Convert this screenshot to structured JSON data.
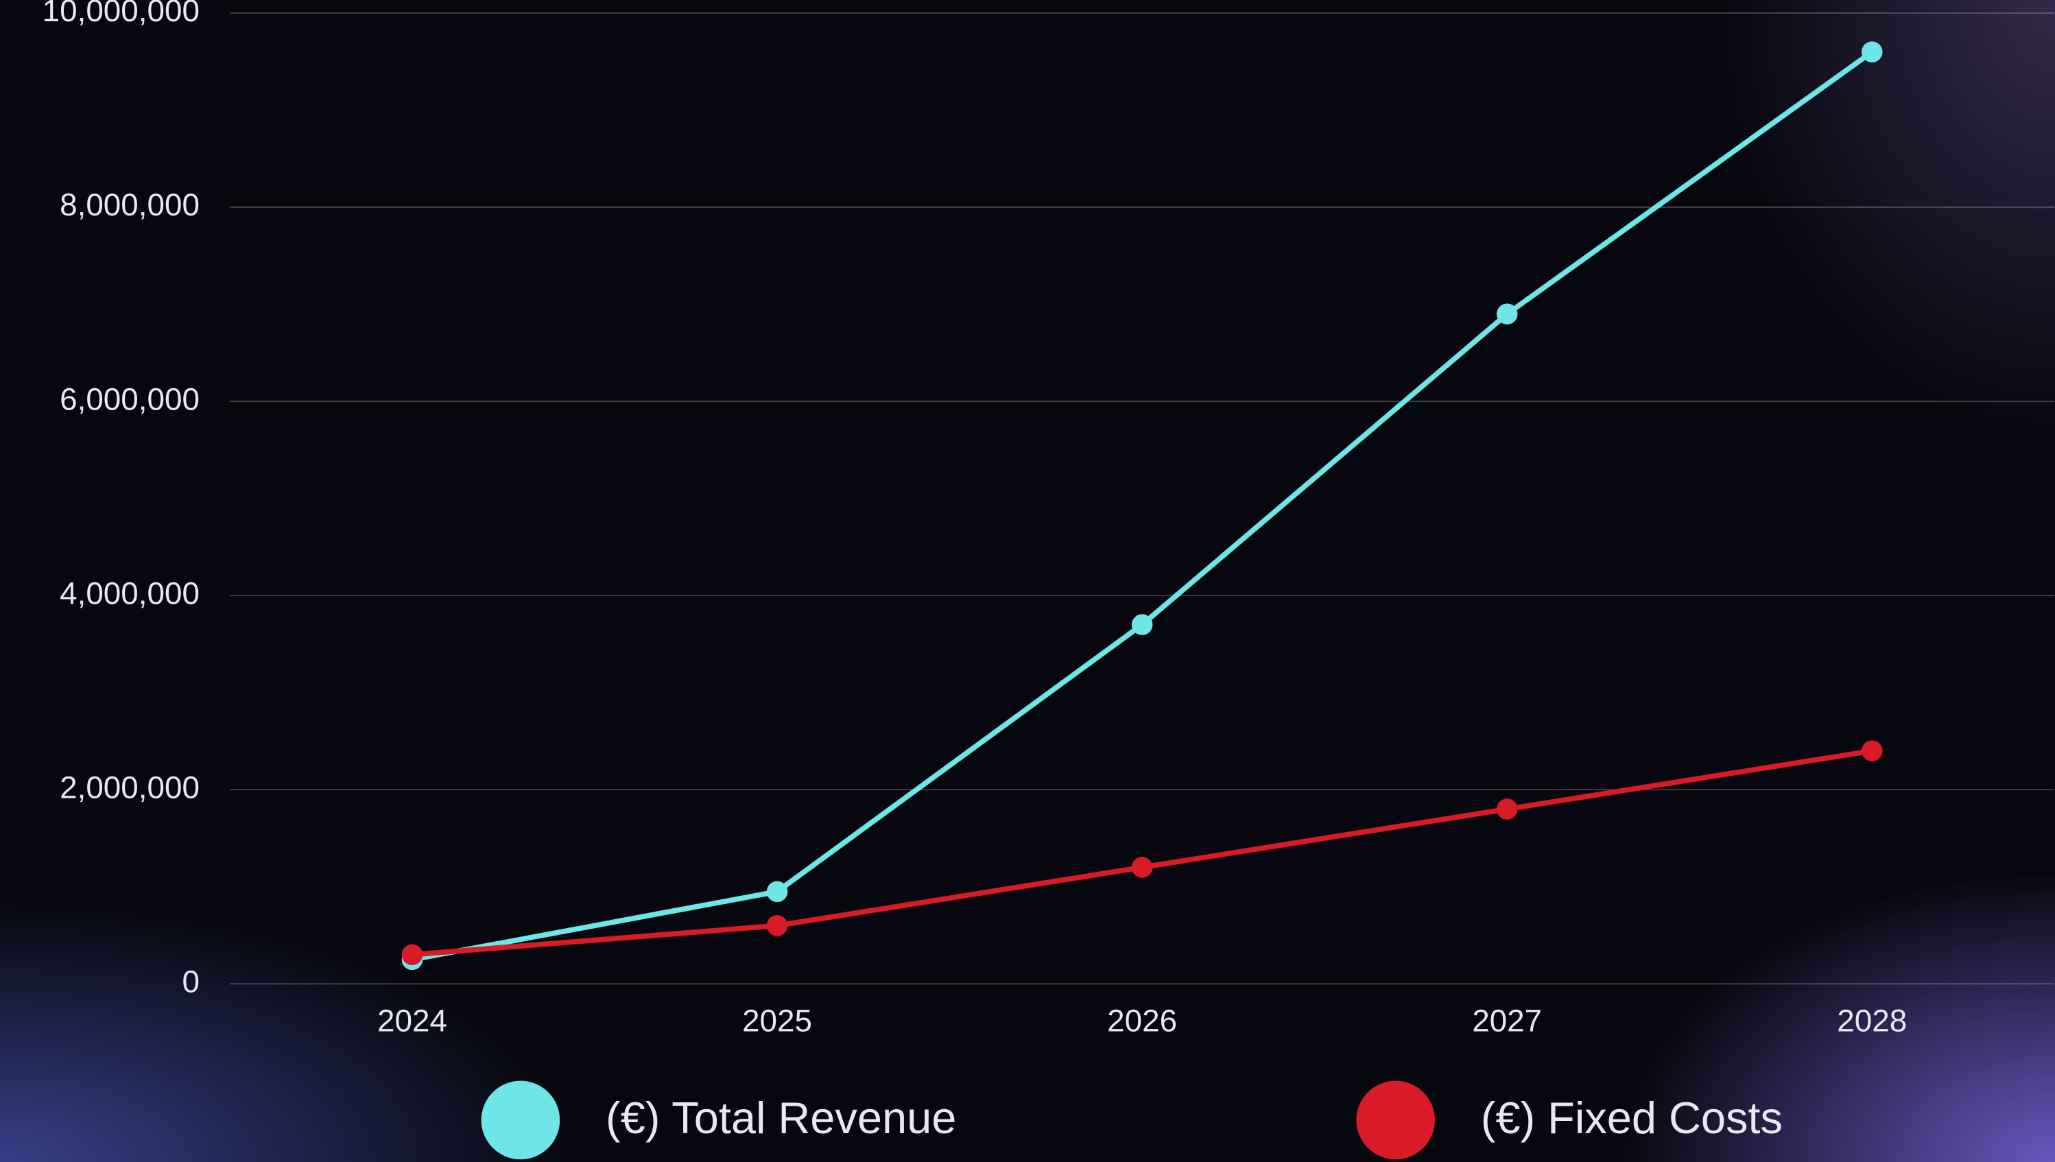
{
  "chart_data": {
    "type": "line",
    "categories": [
      "2024",
      "2025",
      "2026",
      "2027",
      "2028"
    ],
    "series": [
      {
        "name": "(€) Total Revenue",
        "color": "#6ee6e8",
        "values": [
          250000,
          950000,
          3700000,
          6900000,
          9600000
        ]
      },
      {
        "name": "(€) Fixed Costs",
        "color": "#d81b26",
        "values": [
          300000,
          600000,
          1200000,
          1800000,
          2400000
        ]
      }
    ],
    "ylim": [
      0,
      10000000
    ],
    "yticks": [
      0,
      {
        "value": 2000000,
        "label": "2,000,000"
      },
      {
        "value": 4000000,
        "label": "4,000,000"
      },
      {
        "value": 6000000,
        "label": "6,000,000"
      },
      {
        "value": 8000000,
        "label": "8,000,000"
      },
      {
        "value": 10000000,
        "label": "10,000,000"
      }
    ],
    "grid": true,
    "legend": "bottom"
  }
}
